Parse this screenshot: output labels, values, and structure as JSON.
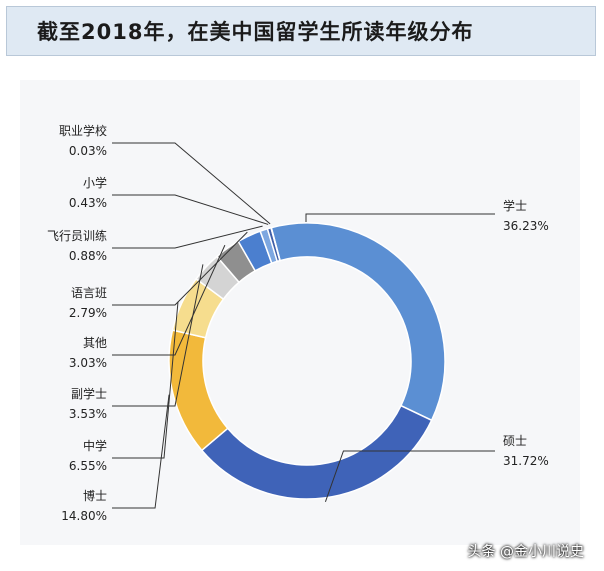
{
  "header": {
    "title": "截至2018年，在美中国留学生所读年级分布"
  },
  "watermark": "头条 @金小川说史",
  "chart_data": {
    "type": "pie",
    "variant": "donut",
    "title": "截至2018年，在美中国留学生所读年级分布",
    "unit": "%",
    "slices": [
      {
        "name": "学士",
        "value": 36.23,
        "label": "36.23%",
        "color": "#5b8fd3"
      },
      {
        "name": "硕士",
        "value": 31.72,
        "label": "31.72%",
        "color": "#3f63b8"
      },
      {
        "name": "博士",
        "value": 14.8,
        "label": "14.80%",
        "color": "#f2b93b"
      },
      {
        "name": "中学",
        "value": 6.55,
        "label": "6.55%",
        "color": "#f6dd8e"
      },
      {
        "name": "副学士",
        "value": 3.53,
        "label": "3.53%",
        "color": "#d4d4d4"
      },
      {
        "name": "其他",
        "value": 3.03,
        "label": "3.03%",
        "color": "#8f8f8f"
      },
      {
        "name": "语言班",
        "value": 2.79,
        "label": "2.79%",
        "color": "#4b7fcf"
      },
      {
        "name": "飞行员训练",
        "value": 0.88,
        "label": "0.88%",
        "color": "#7da7e0"
      },
      {
        "name": "小学",
        "value": 0.43,
        "label": "0.43%",
        "color": "#3f5fa8"
      },
      {
        "name": "职业学校",
        "value": 0.03,
        "label": "0.03%",
        "color": "#9a9a9a"
      }
    ]
  }
}
